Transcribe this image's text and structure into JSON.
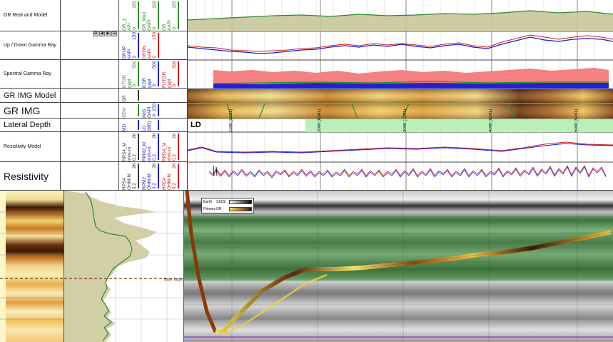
{
  "tracks": {
    "gr_real_model": {
      "label": "GR Real and Model"
    },
    "up_down_gamma": {
      "label": "Up / Down Gamma Ray"
    },
    "spectral_gamma": {
      "label": "Spectral Gamma Ray"
    },
    "gr_img_model": {
      "label": "GR IMG Model"
    },
    "gr_img": {
      "label": "GR IMG"
    },
    "lateral_depth": {
      "label": "Lateral Depth"
    },
    "resistivity_model": {
      "label": "Resistivity Model"
    },
    "resistivity": {
      "label": "Resistivity"
    }
  },
  "curves": {
    "gr_real_model": [
      {
        "name": "GR_1",
        "unit": "API",
        "min": "0",
        "max": "150",
        "color": "#2a8a2a"
      },
      {
        "name": "GR_Mod",
        "unit": "GAPI",
        "min": "0",
        "max": "100",
        "color": "#2a8a2a"
      },
      {
        "name": "GR",
        "unit": "AAPI",
        "min": "0",
        "max": "150",
        "color": "#2a8a2a"
      }
    ],
    "up_down_gamma": [
      {
        "name": "GRUP",
        "unit": "AAPI",
        "min": "0",
        "max": "150",
        "color": "#1a1ad0"
      },
      {
        "name": "GRDN",
        "unit": "AAPI",
        "min": "0",
        "max": "150",
        "color": "#d01a1a"
      }
    ],
    "spectral_gamma": [
      {
        "name": "KTGR",
        "unit": "gapi",
        "min": "0",
        "max": "500",
        "color": "#2a8a2a"
      },
      {
        "name": "KGR",
        "unit": "gapi",
        "min": "0",
        "max": "500",
        "color": "#1a1ad0"
      },
      {
        "name": "FUTGR",
        "unit": "gapi",
        "min": "0",
        "max": "500",
        "color": "#d01a1a"
      }
    ],
    "gr_img_model": [
      {
        "name": "GR",
        "unit": "",
        "min": "",
        "max": "",
        "color": "#333"
      }
    ],
    "gr_img": [
      {
        "name": "SEM",
        "unit": "",
        "min": "",
        "max": "",
        "color": "#2a8a2a"
      },
      {
        "name": "IMG",
        "unit": "GAPI",
        "min": "0",
        "max": "150",
        "color": "#1a1ad0"
      }
    ],
    "lateral_depth": [
      {
        "name": "MD",
        "unit": "",
        "min": "",
        "max": "",
        "color": "#1a1ad0"
      },
      {
        "name": "LD",
        "unit": "(MD)",
        "min": "",
        "max": "",
        "color": "#1a1ad0"
      }
    ],
    "resistivity_model": [
      {
        "name": "RPS4_M",
        "unit": "ohm-m",
        "min": "0.2",
        "max": "2K",
        "color": "#333"
      },
      {
        "name": "RPM2_M",
        "unit": "ohm-m",
        "min": "0.2",
        "max": "2K",
        "color": "#1a1ad0"
      },
      {
        "name": "RPD4_M",
        "unit": "ohm-m",
        "min": "0.2",
        "max": "2K",
        "color": "#d01a1a"
      }
    ],
    "resistivity": [
      {
        "name": "RPS4",
        "unit": "OHM-M",
        "min": "0.2",
        "max": "2K",
        "color": "#333"
      },
      {
        "name": "RPM2",
        "unit": "OHM-M",
        "min": "0.2",
        "max": "2K",
        "color": "#1a1ad0"
      },
      {
        "name": "RPD4",
        "unit": "OHM-M",
        "min": "0.2",
        "max": "2K",
        "color": "#d01a1a"
      }
    ]
  },
  "depth_ticks": [
    {
      "md": "1000",
      "tvd": "(5231)"
    },
    {
      "md": "2000",
      "tvd": "(6241)"
    },
    {
      "md": "3000",
      "tvd": "(7241)"
    },
    {
      "md": "4000",
      "tvd": "(8241)"
    },
    {
      "md": "5000",
      "tvd": "(9241)"
    }
  ],
  "lateral_depth_text": "LD",
  "cross_section": {
    "legend": [
      {
        "label": "Earth",
        "value": "SSCE"
      },
      {
        "label": "Primary",
        "value": "GR"
      }
    ],
    "marker_label": "Base Target"
  },
  "colors": {
    "gr_fill": "#c9c79a",
    "green_line": "#2a8a2a",
    "red": "#d01a1a",
    "blue": "#1a1ad0",
    "lateral_band": "#b8f0b8"
  }
}
